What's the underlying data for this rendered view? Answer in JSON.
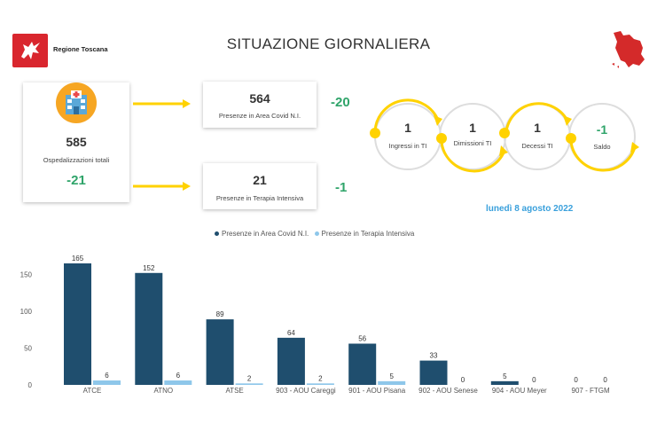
{
  "header": {
    "region_name": "Regione Toscana",
    "title": "SITUAZIONE GIORNALIERA"
  },
  "colors": {
    "covid_bar": "#1f4e6e",
    "ti_bar": "#8ec7ea",
    "delta_green": "#2fa46a",
    "arrow_yellow": "#ffd200",
    "date_blue": "#3aa0dc",
    "brand_red": "#d9262e"
  },
  "total": {
    "icon": "hospital-icon",
    "value": "585",
    "label": "Ospedalizzazioni totali",
    "delta": "-21"
  },
  "covid_area": {
    "value": "564",
    "label": "Presenze in Area Covid N.I.",
    "delta": "-20"
  },
  "intensive_care": {
    "value": "21",
    "label": "Presenze in Terapia Intensiva",
    "delta": "-1"
  },
  "flow": [
    {
      "value": "1",
      "label": "Ingressi in TI"
    },
    {
      "value": "1",
      "label": "Dimissioni TI"
    },
    {
      "value": "1",
      "label": "Decessi TI"
    },
    {
      "value": "-1",
      "label": "Saldo"
    }
  ],
  "date": "lunedì 8 agosto 2022",
  "chart_data": {
    "type": "bar",
    "categories": [
      "ATCE",
      "ATNO",
      "ATSE",
      "903 - AOU Careggi",
      "901 - AOU Pisana",
      "902 - AOU Senese",
      "904 - AOU Meyer",
      "907 - FTGM"
    ],
    "series": [
      {
        "name": "Presenze in Area Covid N.I.",
        "values": [
          165,
          152,
          89,
          64,
          56,
          33,
          5,
          0
        ]
      },
      {
        "name": "Presenze in Terapia Intensiva",
        "values": [
          6,
          6,
          2,
          2,
          5,
          0,
          0,
          0
        ]
      }
    ],
    "yticks": [
      "0",
      "50",
      "100",
      "150"
    ],
    "ylim": [
      0,
      170
    ],
    "legend_position": "top-center",
    "grid": false
  }
}
